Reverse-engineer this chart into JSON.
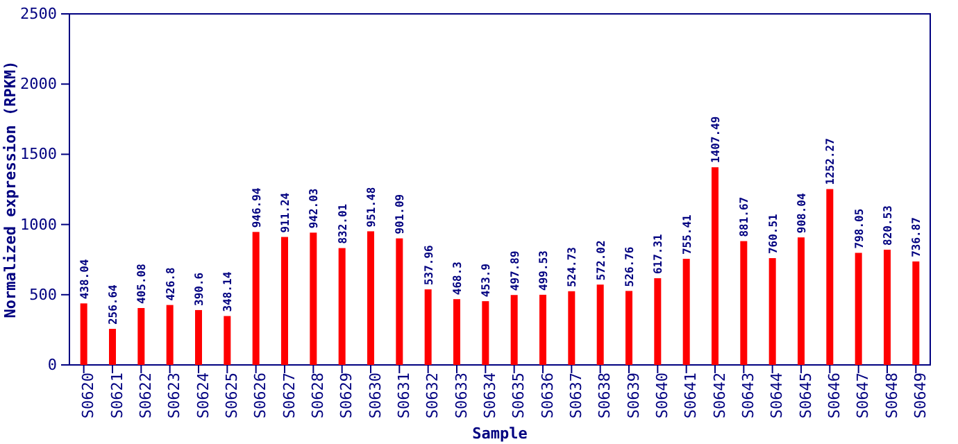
{
  "chart_data": {
    "type": "bar",
    "categories": [
      "S0620",
      "S0621",
      "S0622",
      "S0623",
      "S0624",
      "S0625",
      "S0626",
      "S0627",
      "S0628",
      "S0629",
      "S0630",
      "S0631",
      "S0632",
      "S0633",
      "S0634",
      "S0635",
      "S0636",
      "S0637",
      "S0638",
      "S0639",
      "S0640",
      "S0641",
      "S0642",
      "S0643",
      "S0644",
      "S0645",
      "S0646",
      "S0647",
      "S0648",
      "S0649"
    ],
    "values": [
      438.04,
      256.64,
      405.08,
      426.8,
      390.6,
      348.14,
      946.94,
      911.24,
      942.03,
      832.01,
      951.48,
      901.09,
      537.96,
      468.3,
      453.9,
      497.89,
      499.53,
      524.73,
      572.02,
      526.76,
      617.31,
      755.41,
      1407.49,
      881.67,
      760.51,
      908.04,
      1252.27,
      798.05,
      820.53,
      736.87
    ],
    "color": "#ff0000",
    "xlabel": "Sample",
    "ylabel": "Normalized expression (RPKM)",
    "ylim": [
      0,
      2500
    ],
    "yticks": [
      0,
      500,
      1000,
      1500,
      2000,
      2500
    ],
    "data_labels": true
  }
}
